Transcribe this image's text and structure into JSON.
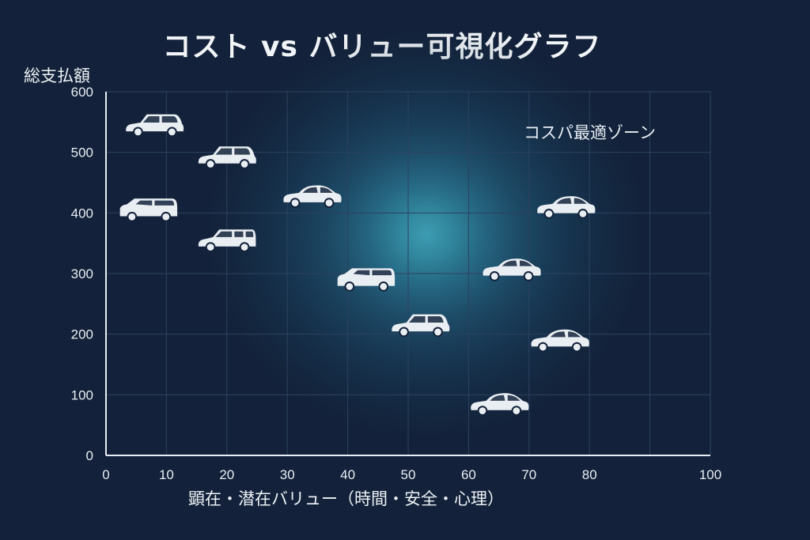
{
  "title": "コスト vs バリュー可視化グラフ",
  "zone_label": "コスパ最適ゾーン",
  "colors": {
    "background": "#13223a",
    "grid": "#2c4160",
    "axis": "#e8edf3",
    "zone_center": "#3fa3b8",
    "car": "#e9eef3"
  },
  "chart_data": {
    "type": "scatter",
    "title": "コスト vs バリュー可視化グラフ",
    "xlabel": "顕在・潜在バリュー（時間・安全・心理）",
    "ylabel": "総支払額",
    "xlim": [
      0,
      100
    ],
    "ylim": [
      0,
      600
    ],
    "xticks": [
      "0",
      "10",
      "20",
      "30",
      "40",
      "50",
      "60",
      "70",
      "80",
      "100"
    ],
    "yticks": [
      "0",
      "100",
      "200",
      "300",
      "400",
      "500",
      "600"
    ],
    "grid": true,
    "marker": "car-icon",
    "points": [
      {
        "x": 8,
        "y": 545,
        "kind": "hatchback"
      },
      {
        "x": 20,
        "y": 492,
        "kind": "hatchback"
      },
      {
        "x": 34,
        "y": 428,
        "kind": "sedan"
      },
      {
        "x": 7,
        "y": 405,
        "kind": "minivan"
      },
      {
        "x": 20,
        "y": 355,
        "kind": "wagon"
      },
      {
        "x": 76,
        "y": 410,
        "kind": "sedan"
      },
      {
        "x": 67,
        "y": 307,
        "kind": "sedan"
      },
      {
        "x": 43,
        "y": 290,
        "kind": "minivan"
      },
      {
        "x": 52,
        "y": 215,
        "kind": "hatchback"
      },
      {
        "x": 75,
        "y": 190,
        "kind": "sedan"
      },
      {
        "x": 65,
        "y": 85,
        "kind": "sedan"
      }
    ],
    "zone": {
      "label": "コスパ最適ゾーン",
      "center_x": 53,
      "center_y": 365
    }
  }
}
